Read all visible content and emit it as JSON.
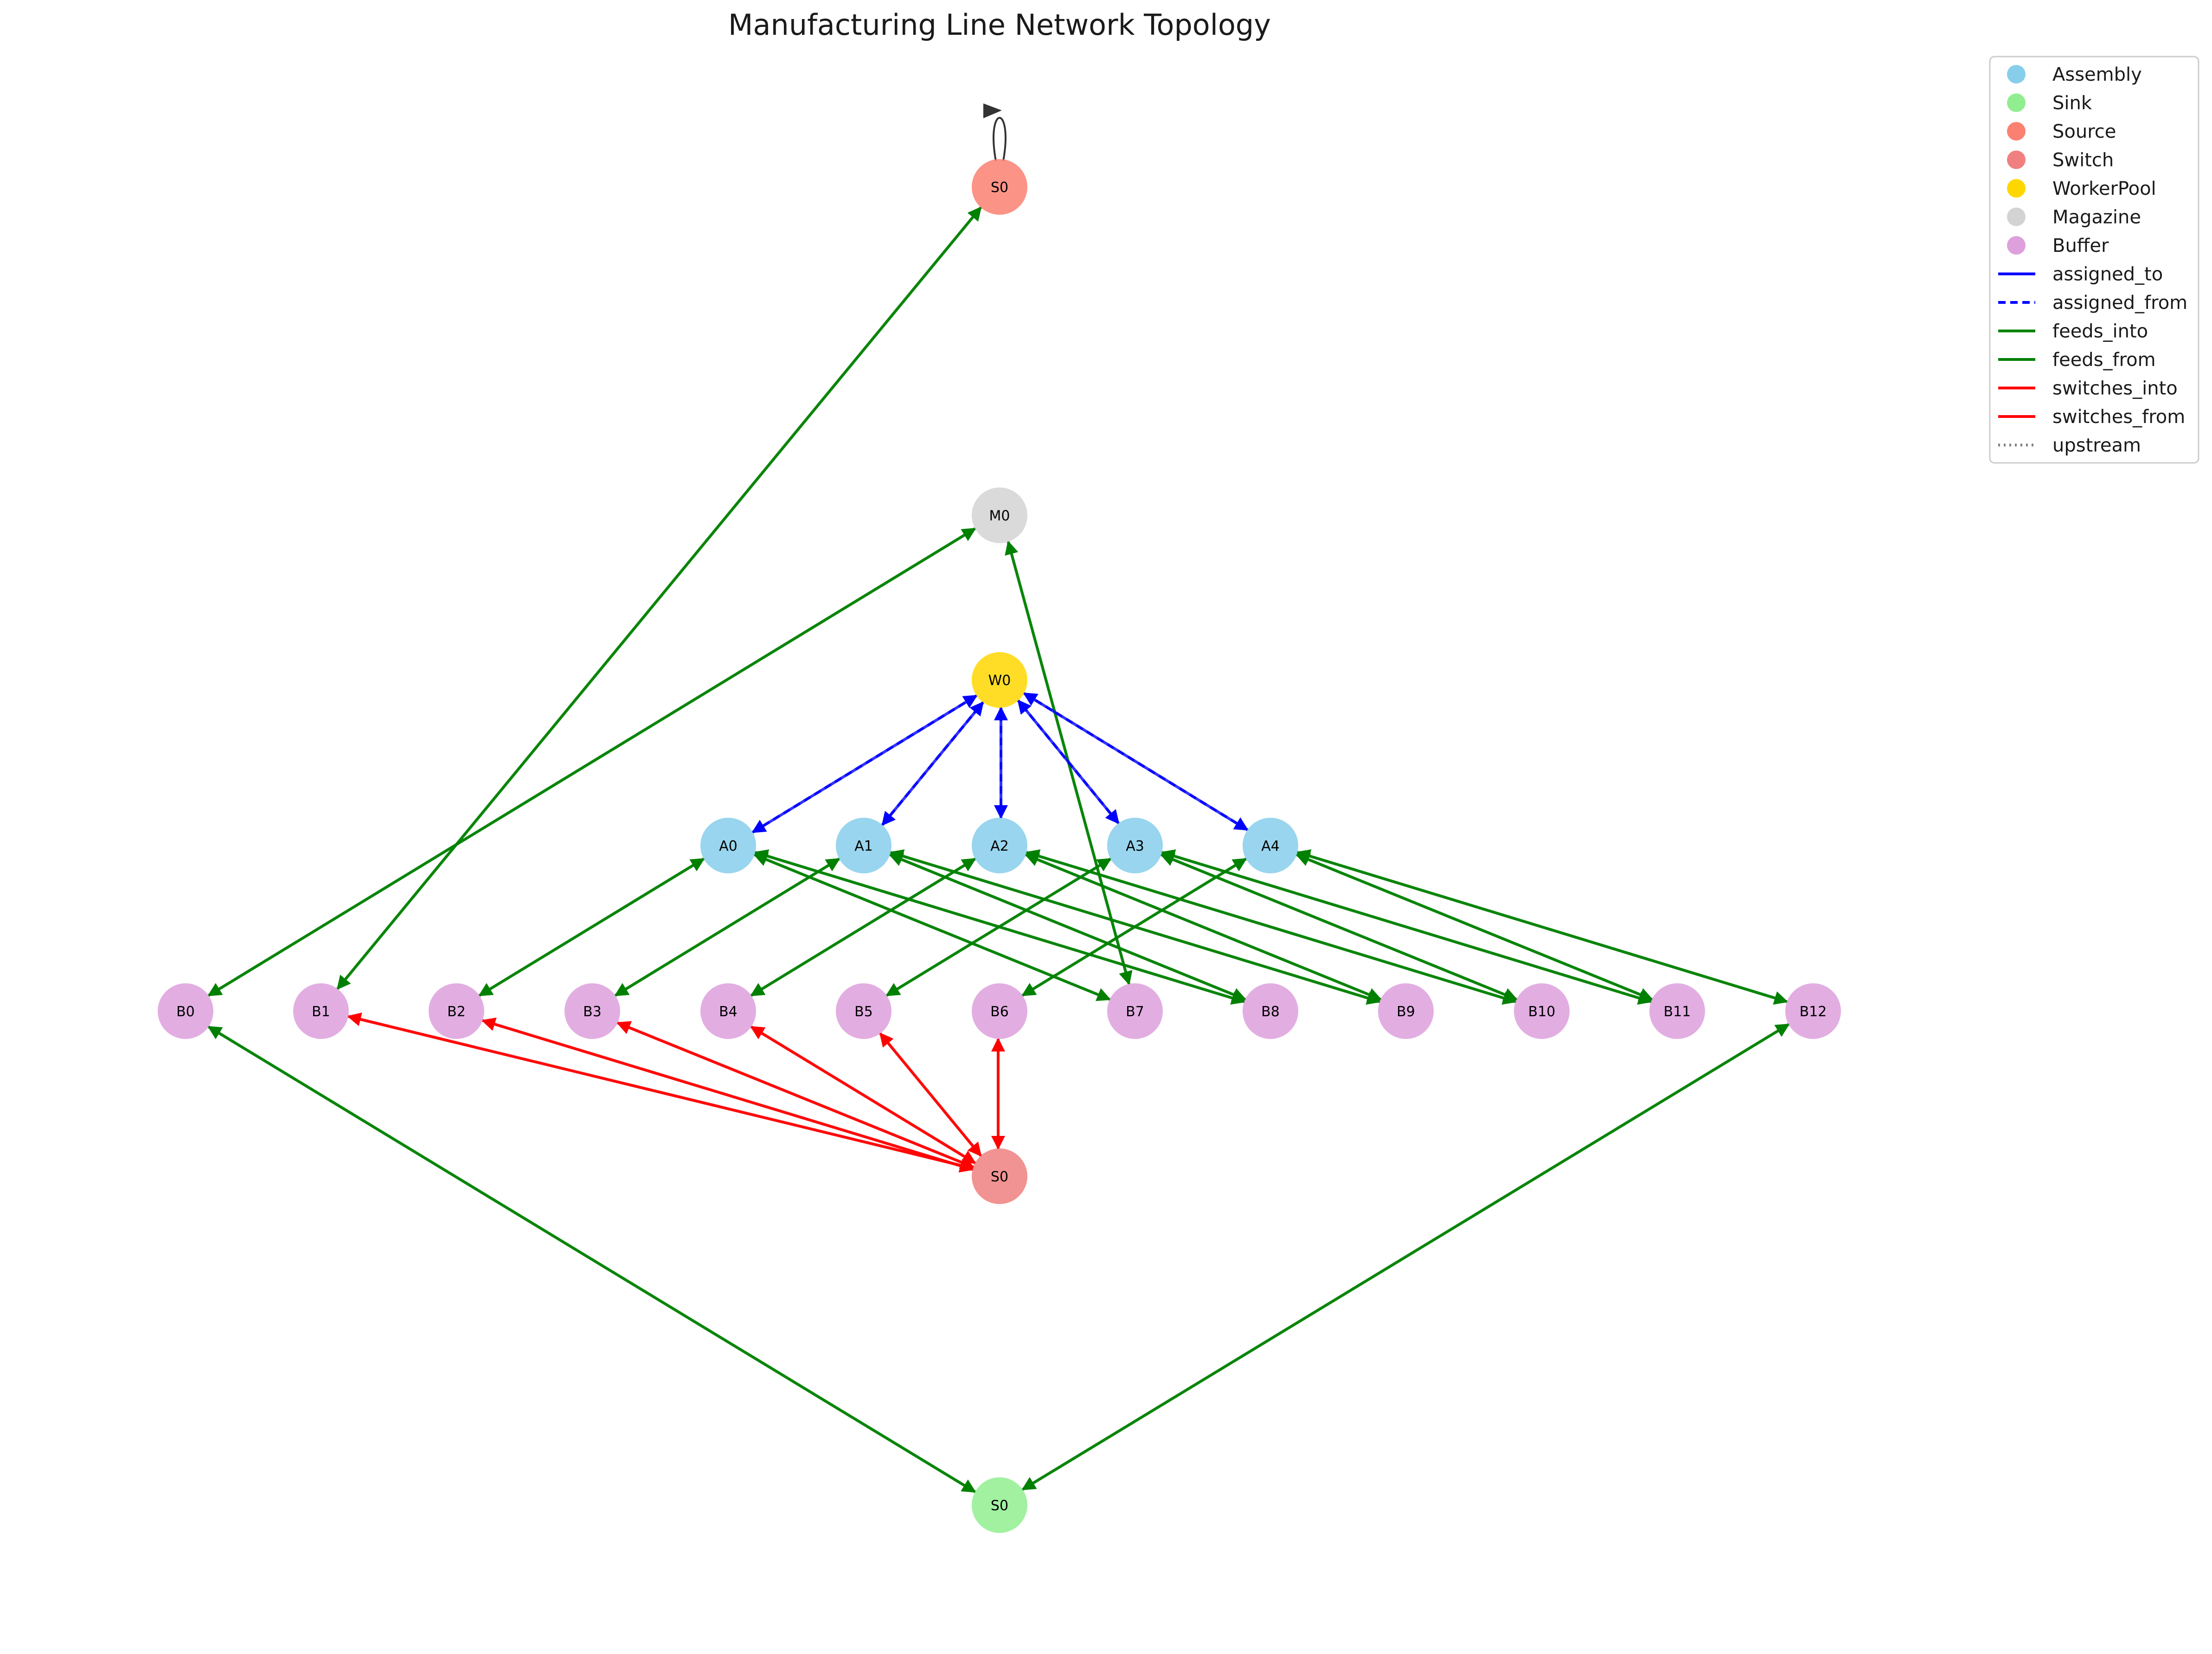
{
  "title": "Manufacturing Line Network Topology",
  "node_types": {
    "Assembly": "#87CEEB",
    "Sink": "#90EE90",
    "Source": "#FA8072",
    "Switch": "#F08080",
    "WorkerPool": "#FFD700",
    "Magazine": "#D3D3D3",
    "Buffer": "#DDA0DD"
  },
  "edge_types": {
    "assigned_to": {
      "color": "#0000FF",
      "style": "solid"
    },
    "assigned_from": {
      "color": "#0000FF",
      "style": "dashed"
    },
    "feeds_into": {
      "color": "#008000",
      "style": "solid"
    },
    "feeds_from": {
      "color": "#008000",
      "style": "solid"
    },
    "switches_into": {
      "color": "#FF0000",
      "style": "solid"
    },
    "switches_from": {
      "color": "#FF0000",
      "style": "solid"
    },
    "upstream": {
      "color": "#808080",
      "style": "dotted"
    }
  },
  "legend": [
    {
      "label": "Assembly",
      "kind": "node",
      "type": "Assembly"
    },
    {
      "label": "Sink",
      "kind": "node",
      "type": "Sink"
    },
    {
      "label": "Source",
      "kind": "node",
      "type": "Source"
    },
    {
      "label": "Switch",
      "kind": "node",
      "type": "Switch"
    },
    {
      "label": "WorkerPool",
      "kind": "node",
      "type": "WorkerPool"
    },
    {
      "label": "Magazine",
      "kind": "node",
      "type": "Magazine"
    },
    {
      "label": "Buffer",
      "kind": "node",
      "type": "Buffer"
    },
    {
      "label": "assigned_to",
      "kind": "edge",
      "type": "assigned_to"
    },
    {
      "label": "assigned_from",
      "kind": "edge",
      "type": "assigned_from"
    },
    {
      "label": "feeds_into",
      "kind": "edge",
      "type": "feeds_into"
    },
    {
      "label": "feeds_from",
      "kind": "edge",
      "type": "feeds_from"
    },
    {
      "label": "switches_into",
      "kind": "edge",
      "type": "switches_into"
    },
    {
      "label": "switches_from",
      "kind": "edge",
      "type": "switches_from"
    },
    {
      "label": "upstream",
      "kind": "edge",
      "type": "upstream"
    }
  ],
  "nodes": [
    {
      "id": "src",
      "label": "S0",
      "type": "Source"
    },
    {
      "id": "M0",
      "label": "M0",
      "type": "Magazine"
    },
    {
      "id": "W0",
      "label": "W0",
      "type": "WorkerPool"
    },
    {
      "id": "A0",
      "label": "A0",
      "type": "Assembly"
    },
    {
      "id": "A1",
      "label": "A1",
      "type": "Assembly"
    },
    {
      "id": "A2",
      "label": "A2",
      "type": "Assembly"
    },
    {
      "id": "A3",
      "label": "A3",
      "type": "Assembly"
    },
    {
      "id": "A4",
      "label": "A4",
      "type": "Assembly"
    },
    {
      "id": "B0",
      "label": "B0",
      "type": "Buffer"
    },
    {
      "id": "B1",
      "label": "B1",
      "type": "Buffer"
    },
    {
      "id": "B2",
      "label": "B2",
      "type": "Buffer"
    },
    {
      "id": "B3",
      "label": "B3",
      "type": "Buffer"
    },
    {
      "id": "B4",
      "label": "B4",
      "type": "Buffer"
    },
    {
      "id": "B5",
      "label": "B5",
      "type": "Buffer"
    },
    {
      "id": "B6",
      "label": "B6",
      "type": "Buffer"
    },
    {
      "id": "B7",
      "label": "B7",
      "type": "Buffer"
    },
    {
      "id": "B8",
      "label": "B8",
      "type": "Buffer"
    },
    {
      "id": "B9",
      "label": "B9",
      "type": "Buffer"
    },
    {
      "id": "B10",
      "label": "B10",
      "type": "Buffer"
    },
    {
      "id": "B11",
      "label": "B11",
      "type": "Buffer"
    },
    {
      "id": "B12",
      "label": "B12",
      "type": "Buffer"
    },
    {
      "id": "sw",
      "label": "S0",
      "type": "Switch"
    },
    {
      "id": "snk",
      "label": "S0",
      "type": "Sink"
    }
  ],
  "edges": [
    {
      "from": "src",
      "to": "src",
      "type": "feeds_into",
      "self_loop": true
    },
    {
      "from": "B1",
      "to": "src",
      "type": "feeds_into"
    },
    {
      "from": "src",
      "to": "B1",
      "type": "feeds_from"
    },
    {
      "from": "B0",
      "to": "M0",
      "type": "feeds_into"
    },
    {
      "from": "M0",
      "to": "B0",
      "type": "feeds_from"
    },
    {
      "from": "M0",
      "to": "B7",
      "type": "feeds_into"
    },
    {
      "from": "B7",
      "to": "M0",
      "type": "feeds_from"
    },
    {
      "from": "W0",
      "to": "A0",
      "type": "assigned_to"
    },
    {
      "from": "A0",
      "to": "W0",
      "type": "assigned_from"
    },
    {
      "from": "W0",
      "to": "A1",
      "type": "assigned_to"
    },
    {
      "from": "A1",
      "to": "W0",
      "type": "assigned_from"
    },
    {
      "from": "W0",
      "to": "A2",
      "type": "assigned_to"
    },
    {
      "from": "A2",
      "to": "W0",
      "type": "assigned_from"
    },
    {
      "from": "W0",
      "to": "A3",
      "type": "assigned_to"
    },
    {
      "from": "A3",
      "to": "W0",
      "type": "assigned_from"
    },
    {
      "from": "W0",
      "to": "A4",
      "type": "assigned_to"
    },
    {
      "from": "A4",
      "to": "W0",
      "type": "assigned_from"
    },
    {
      "from": "B2",
      "to": "A0",
      "type": "feeds_into"
    },
    {
      "from": "A0",
      "to": "B2",
      "type": "feeds_from"
    },
    {
      "from": "B3",
      "to": "A1",
      "type": "feeds_into"
    },
    {
      "from": "A1",
      "to": "B3",
      "type": "feeds_from"
    },
    {
      "from": "B4",
      "to": "A2",
      "type": "feeds_into"
    },
    {
      "from": "A2",
      "to": "B4",
      "type": "feeds_from"
    },
    {
      "from": "B5",
      "to": "A3",
      "type": "feeds_into"
    },
    {
      "from": "A3",
      "to": "B5",
      "type": "feeds_from"
    },
    {
      "from": "B6",
      "to": "A4",
      "type": "feeds_into"
    },
    {
      "from": "A4",
      "to": "B6",
      "type": "feeds_from"
    },
    {
      "from": "A0",
      "to": "B7",
      "type": "feeds_into"
    },
    {
      "from": "B7",
      "to": "A0",
      "type": "feeds_from"
    },
    {
      "from": "A0",
      "to": "B8",
      "type": "feeds_into"
    },
    {
      "from": "B8",
      "to": "A0",
      "type": "feeds_from"
    },
    {
      "from": "A1",
      "to": "B8",
      "type": "feeds_into"
    },
    {
      "from": "B8",
      "to": "A1",
      "type": "feeds_from"
    },
    {
      "from": "A1",
      "to": "B9",
      "type": "feeds_into"
    },
    {
      "from": "B9",
      "to": "A1",
      "type": "feeds_from"
    },
    {
      "from": "A2",
      "to": "B9",
      "type": "feeds_into"
    },
    {
      "from": "B9",
      "to": "A2",
      "type": "feeds_from"
    },
    {
      "from": "A2",
      "to": "B10",
      "type": "feeds_into"
    },
    {
      "from": "B10",
      "to": "A2",
      "type": "feeds_from"
    },
    {
      "from": "A3",
      "to": "B10",
      "type": "feeds_into"
    },
    {
      "from": "B10",
      "to": "A3",
      "type": "feeds_from"
    },
    {
      "from": "A3",
      "to": "B11",
      "type": "feeds_into"
    },
    {
      "from": "B11",
      "to": "A3",
      "type": "feeds_from"
    },
    {
      "from": "A4",
      "to": "B11",
      "type": "feeds_into"
    },
    {
      "from": "B11",
      "to": "A4",
      "type": "feeds_from"
    },
    {
      "from": "A4",
      "to": "B12",
      "type": "feeds_into"
    },
    {
      "from": "B12",
      "to": "A4",
      "type": "feeds_from"
    },
    {
      "from": "B1",
      "to": "sw",
      "type": "switches_into"
    },
    {
      "from": "sw",
      "to": "B1",
      "type": "switches_from"
    },
    {
      "from": "sw",
      "to": "B2",
      "type": "switches_into"
    },
    {
      "from": "B2",
      "to": "sw",
      "type": "switches_from"
    },
    {
      "from": "sw",
      "to": "B3",
      "type": "switches_into"
    },
    {
      "from": "B3",
      "to": "sw",
      "type": "switches_from"
    },
    {
      "from": "sw",
      "to": "B4",
      "type": "switches_into"
    },
    {
      "from": "B4",
      "to": "sw",
      "type": "switches_from"
    },
    {
      "from": "sw",
      "to": "B5",
      "type": "switches_into"
    },
    {
      "from": "B5",
      "to": "sw",
      "type": "switches_from"
    },
    {
      "from": "sw",
      "to": "B6",
      "type": "switches_into"
    },
    {
      "from": "B6",
      "to": "sw",
      "type": "switches_from"
    },
    {
      "from": "snk",
      "to": "B0",
      "type": "feeds_into"
    },
    {
      "from": "B0",
      "to": "snk",
      "type": "feeds_from"
    },
    {
      "from": "snk",
      "to": "B12",
      "type": "feeds_into"
    },
    {
      "from": "B12",
      "to": "snk",
      "type": "feeds_from"
    }
  ]
}
